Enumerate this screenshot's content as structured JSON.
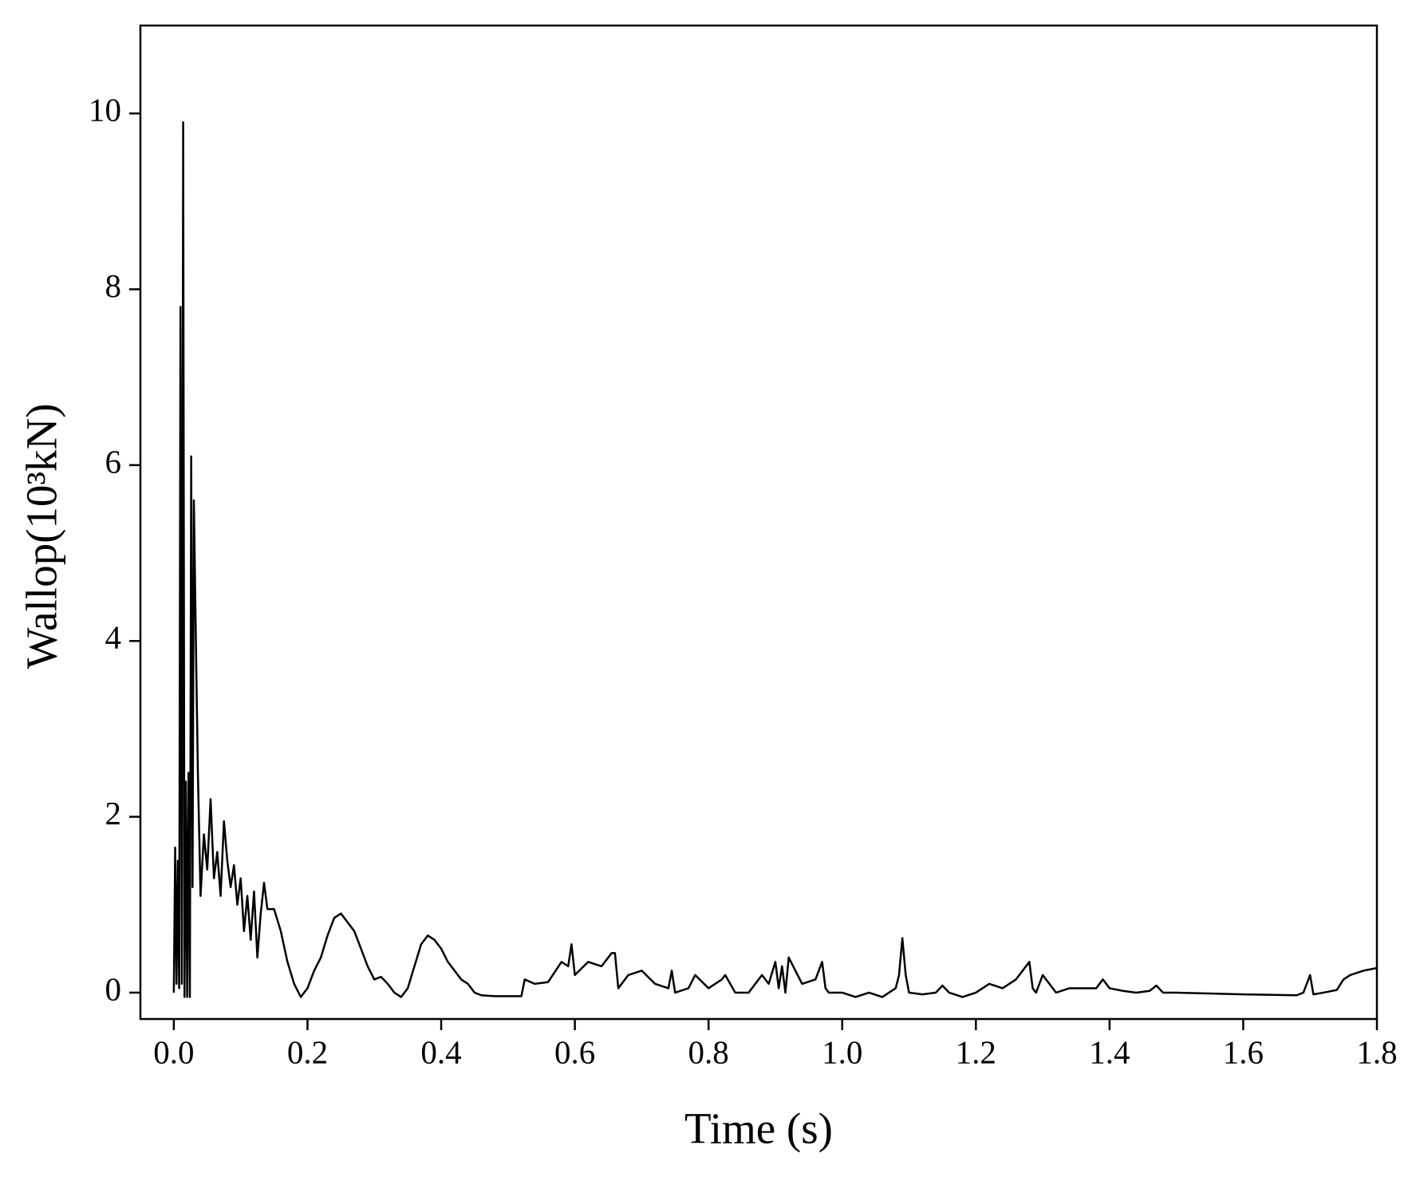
{
  "chart_data": {
    "type": "line",
    "x_label": "Time (s)",
    "y_label": "Wallop(10³kN)",
    "xlim": [
      -0.05,
      1.8
    ],
    "ylim": [
      -0.3,
      11
    ],
    "xticks": [
      {
        "value": 0,
        "label": "0.0"
      },
      0.2,
      0.4,
      0.6,
      0.8,
      {
        "value": 1,
        "label": "1.0"
      },
      1.2,
      1.4,
      1.6,
      1.8
    ],
    "yticks": [
      0,
      2,
      4,
      6,
      8,
      10
    ],
    "series": [
      {
        "color": "#000000",
        "x": [
          0,
          0.002,
          0.004,
          0.006,
          0.008,
          0.01,
          0.012,
          0.014,
          0.016,
          0.018,
          0.02,
          0.022,
          0.024,
          0.026,
          0.028,
          0.03,
          0.033,
          0.036,
          0.04,
          0.045,
          0.05,
          0.055,
          0.06,
          0.065,
          0.07,
          0.075,
          0.08,
          0.085,
          0.09,
          0.095,
          0.1,
          0.105,
          0.11,
          0.115,
          0.12,
          0.125,
          0.13,
          0.135,
          0.14,
          0.15,
          0.16,
          0.17,
          0.18,
          0.19,
          0.2,
          0.21,
          0.22,
          0.23,
          0.24,
          0.25,
          0.26,
          0.27,
          0.28,
          0.29,
          0.3,
          0.31,
          0.32,
          0.33,
          0.34,
          0.35,
          0.36,
          0.37,
          0.38,
          0.39,
          0.4,
          0.41,
          0.42,
          0.43,
          0.44,
          0.45,
          0.46,
          0.48,
          0.5,
          0.52,
          0.525,
          0.54,
          0.56,
          0.58,
          0.59,
          0.595,
          0.6,
          0.62,
          0.64,
          0.655,
          0.66,
          0.665,
          0.68,
          0.7,
          0.72,
          0.74,
          0.745,
          0.75,
          0.77,
          0.78,
          0.8,
          0.82,
          0.825,
          0.84,
          0.86,
          0.88,
          0.89,
          0.9,
          0.905,
          0.91,
          0.915,
          0.92,
          0.94,
          0.96,
          0.97,
          0.975,
          0.98,
          1.0,
          1.02,
          1.04,
          1.06,
          1.08,
          1.085,
          1.09,
          1.095,
          1.1,
          1.12,
          1.14,
          1.15,
          1.16,
          1.18,
          1.2,
          1.22,
          1.24,
          1.26,
          1.28,
          1.285,
          1.29,
          1.3,
          1.32,
          1.34,
          1.36,
          1.38,
          1.39,
          1.4,
          1.42,
          1.44,
          1.46,
          1.47,
          1.48,
          1.5,
          1.6,
          1.68,
          1.69,
          1.7,
          1.705,
          1.72,
          1.74,
          1.75,
          1.76,
          1.78,
          1.8
        ],
        "values": [
          0,
          1.65,
          0.1,
          1.5,
          0.05,
          7.8,
          0.1,
          9.9,
          -0.05,
          2.4,
          -0.05,
          2.5,
          -0.05,
          6.1,
          1.2,
          5.6,
          4.0,
          2.5,
          1.1,
          1.8,
          1.4,
          2.2,
          1.3,
          1.6,
          1.1,
          1.95,
          1.5,
          1.2,
          1.45,
          1.0,
          1.3,
          0.7,
          1.1,
          0.6,
          1.15,
          0.4,
          0.9,
          1.25,
          0.95,
          0.95,
          0.7,
          0.35,
          0.1,
          -0.05,
          0.05,
          0.25,
          0.4,
          0.65,
          0.85,
          0.9,
          0.8,
          0.7,
          0.5,
          0.3,
          0.15,
          0.18,
          0.1,
          0.0,
          -0.05,
          0.05,
          0.3,
          0.55,
          0.65,
          0.6,
          0.5,
          0.35,
          0.25,
          0.15,
          0.1,
          0.0,
          -0.03,
          -0.04,
          -0.04,
          -0.04,
          0.15,
          0.1,
          0.12,
          0.35,
          0.3,
          0.55,
          0.2,
          0.35,
          0.3,
          0.45,
          0.45,
          0.05,
          0.2,
          0.25,
          0.1,
          0.05,
          0.25,
          0.0,
          0.05,
          0.2,
          0.05,
          0.15,
          0.2,
          0.0,
          0.0,
          0.2,
          0.1,
          0.35,
          0.05,
          0.3,
          0.0,
          0.4,
          0.1,
          0.15,
          0.35,
          0.05,
          0.0,
          0.0,
          -0.05,
          0.0,
          -0.05,
          0.05,
          0.2,
          0.62,
          0.2,
          0.0,
          -0.02,
          0.0,
          0.08,
          0.0,
          -0.05,
          0.0,
          0.1,
          0.05,
          0.15,
          0.35,
          0.05,
          0.0,
          0.2,
          0.0,
          0.05,
          0.05,
          0.05,
          0.15,
          0.05,
          0.02,
          0.0,
          0.02,
          0.08,
          0.0,
          0.0,
          -0.02,
          -0.03,
          0.0,
          0.2,
          -0.02,
          0.0,
          0.03,
          0.15,
          0.2,
          0.25,
          0.28
        ]
      }
    ]
  }
}
